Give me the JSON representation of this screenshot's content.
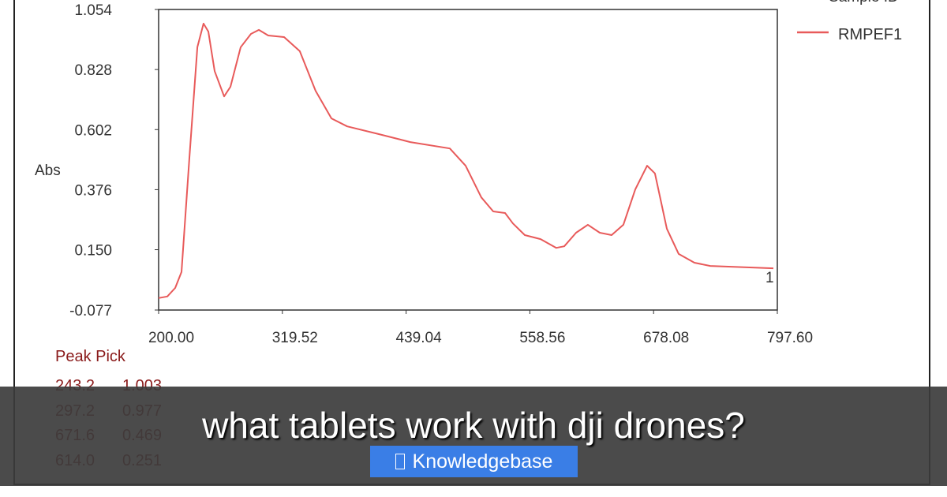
{
  "chart_data": {
    "type": "line",
    "xlabel": "",
    "ylabel": "Abs",
    "xlim": [
      200.0,
      797.6
    ],
    "ylim": [
      -0.077,
      1.054
    ],
    "x_ticks": [
      "200.00",
      "319.52",
      "439.04",
      "558.56",
      "678.08",
      "797.60"
    ],
    "y_ticks": [
      "1.054",
      "0.828",
      "0.602",
      "0.376",
      "0.150",
      "-0.077"
    ],
    "grid": false,
    "legend": {
      "title": "Sample ID",
      "placement": "top-right"
    },
    "series": [
      {
        "name": "RMPEF1",
        "color": "#e85a5a",
        "end_label": "1",
        "x": [
          200,
          208.4,
          216,
          222.1,
          229.7,
          237.4,
          243.4,
          248,
          254.1,
          263.3,
          269.4,
          279.3,
          289.2,
          296.8,
          305.9,
          321.2,
          336.4,
          351.6,
          366.9,
          382.1,
          412.7,
          443.1,
          481.3,
          496.5,
          511.7,
          523.2,
          534.6,
          542.2,
          553.7,
          568.9,
          584.1,
          591.8,
          603.2,
          614.6,
          626.1,
          637.5,
          648.9,
          660.4,
          671.8,
          679.4,
          690.9,
          702.3,
          717.5,
          732.8,
          793.8
        ],
        "y": [
          -0.032,
          -0.026,
          0.006,
          0.066,
          0.496,
          0.912,
          1.001,
          0.971,
          0.822,
          0.727,
          0.763,
          0.912,
          0.962,
          0.977,
          0.956,
          0.95,
          0.897,
          0.748,
          0.644,
          0.614,
          0.585,
          0.555,
          0.531,
          0.466,
          0.347,
          0.294,
          0.288,
          0.249,
          0.205,
          0.19,
          0.157,
          0.163,
          0.214,
          0.244,
          0.214,
          0.205,
          0.244,
          0.377,
          0.466,
          0.437,
          0.229,
          0.134,
          0.101,
          0.089,
          0.08
        ]
      }
    ],
    "peak_pick": {
      "title": "Peak Pick",
      "rows": [
        [
          "243.2",
          "1.003"
        ],
        [
          "297.2",
          "0.977"
        ],
        [
          "671.6",
          "0.469"
        ],
        [
          "614.0",
          "0.251"
        ]
      ]
    }
  },
  "overlay": {
    "title": "what tablets work with dji drones?",
    "button_label": "Knowledgebase",
    "button_icon": "missing-glyph-box-icon",
    "button_color": "#3a7ee6"
  }
}
